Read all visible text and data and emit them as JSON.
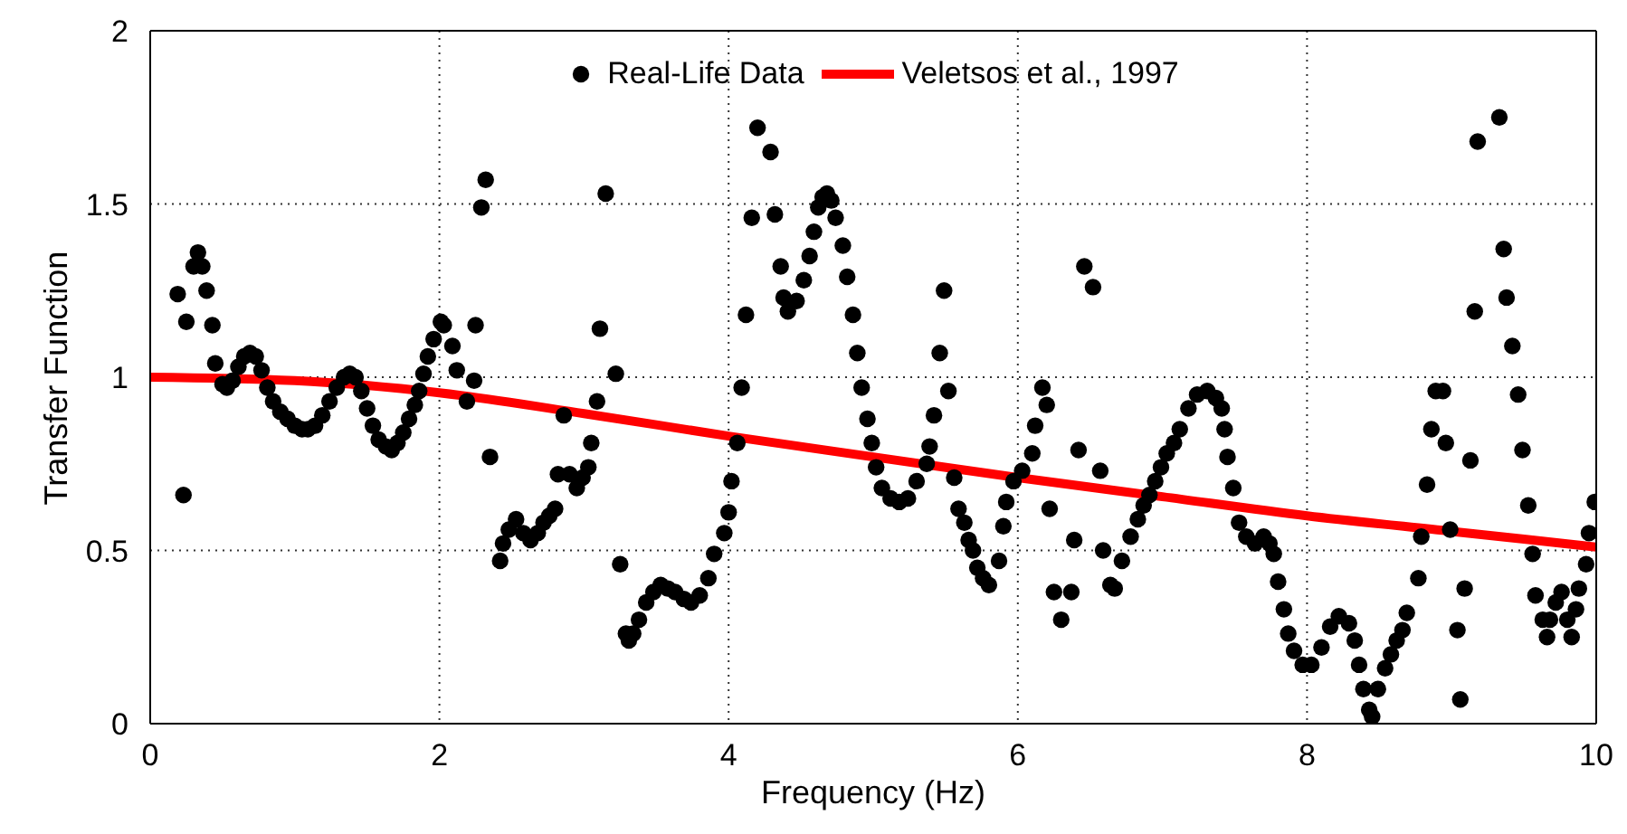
{
  "chart_data": {
    "type": "scatter",
    "xlabel": "Frequency (Hz)",
    "ylabel": "Transfer Function",
    "xlim": [
      0,
      10
    ],
    "xticks": [
      0,
      2,
      4,
      6,
      8,
      10
    ],
    "ylim": [
      0,
      2
    ],
    "yticks": [
      0,
      0.5,
      1,
      1.5,
      2
    ],
    "grid": true,
    "legend": "top",
    "series": [
      {
        "name": "Real-Life Data",
        "color": "#000000",
        "marker": "circle",
        "x": [
          0.19,
          0.23,
          0.25,
          0.3,
          0.33,
          0.36,
          0.39,
          0.43,
          0.45,
          0.5,
          0.53,
          0.57,
          0.61,
          0.65,
          0.69,
          0.73,
          0.77,
          0.81,
          0.85,
          0.9,
          0.95,
          1.0,
          1.05,
          1.09,
          1.14,
          1.19,
          1.24,
          1.29,
          1.34,
          1.38,
          1.42,
          1.46,
          1.5,
          1.54,
          1.58,
          1.63,
          1.67,
          1.71,
          1.75,
          1.79,
          1.83,
          1.86,
          1.89,
          1.92,
          1.96,
          2.01,
          2.03,
          2.09,
          2.12,
          2.19,
          2.24,
          2.25,
          2.29,
          2.32,
          2.35,
          2.42,
          2.44,
          2.48,
          2.53,
          2.58,
          2.63,
          2.68,
          2.72,
          2.76,
          2.8,
          2.82,
          2.86,
          2.9,
          2.95,
          2.99,
          3.03,
          3.05,
          3.09,
          3.11,
          3.15,
          3.22,
          3.25,
          3.29,
          3.31,
          3.34,
          3.38,
          3.43,
          3.48,
          3.53,
          3.58,
          3.63,
          3.69,
          3.74,
          3.8,
          3.86,
          3.9,
          3.97,
          4.0,
          4.02,
          4.06,
          4.09,
          4.12,
          4.16,
          4.2,
          4.29,
          4.32,
          4.36,
          4.38,
          4.41,
          4.47,
          4.52,
          4.56,
          4.59,
          4.62,
          4.65,
          4.68,
          4.71,
          4.74,
          4.79,
          4.82,
          4.86,
          4.89,
          4.92,
          4.96,
          4.99,
          5.02,
          5.06,
          5.12,
          5.18,
          5.24,
          5.3,
          5.37,
          5.39,
          5.42,
          5.46,
          5.49,
          5.52,
          5.56,
          5.59,
          5.63,
          5.66,
          5.69,
          5.72,
          5.76,
          5.8,
          5.87,
          5.9,
          5.92,
          5.97,
          6.03,
          6.1,
          6.12,
          6.17,
          6.2,
          6.22,
          6.25,
          6.3,
          6.37,
          6.39,
          6.42,
          6.46,
          6.52,
          6.57,
          6.59,
          6.64,
          6.67,
          6.72,
          6.78,
          6.83,
          6.87,
          6.91,
          6.95,
          6.99,
          7.03,
          7.08,
          7.12,
          7.18,
          7.24,
          7.31,
          7.37,
          7.41,
          7.43,
          7.45,
          7.49,
          7.53,
          7.58,
          7.64,
          7.7,
          7.74,
          7.77,
          7.8,
          7.84,
          7.87,
          7.91,
          7.97,
          8.03,
          8.1,
          8.16,
          8.22,
          8.29,
          8.33,
          8.36,
          8.39,
          8.43,
          8.45,
          8.49,
          8.54,
          8.58,
          8.62,
          8.66,
          8.69,
          8.77,
          8.79,
          8.83,
          8.86,
          8.89,
          8.94,
          8.96,
          8.99,
          9.04,
          9.06,
          9.09,
          9.13,
          9.16,
          9.18,
          9.33,
          9.36,
          9.38,
          9.42,
          9.46,
          9.49,
          9.53,
          9.56,
          9.58,
          9.63,
          9.66,
          9.68,
          9.72,
          9.76,
          9.8,
          9.83,
          9.86,
          9.88,
          9.93,
          9.95,
          9.99
        ],
        "values": [
          1.24,
          0.66,
          1.16,
          1.32,
          1.36,
          1.32,
          1.25,
          1.15,
          1.04,
          0.98,
          0.97,
          0.99,
          1.03,
          1.06,
          1.07,
          1.06,
          1.02,
          0.97,
          0.93,
          0.9,
          0.88,
          0.86,
          0.85,
          0.85,
          0.86,
          0.89,
          0.93,
          0.97,
          1.0,
          1.01,
          1.0,
          0.96,
          0.91,
          0.86,
          0.82,
          0.8,
          0.79,
          0.81,
          0.84,
          0.88,
          0.92,
          0.96,
          1.01,
          1.06,
          1.11,
          1.16,
          1.15,
          1.09,
          1.02,
          0.93,
          0.99,
          1.15,
          1.49,
          1.57,
          0.77,
          0.47,
          0.52,
          0.56,
          0.59,
          0.55,
          0.53,
          0.55,
          0.58,
          0.6,
          0.62,
          0.72,
          0.89,
          0.72,
          0.68,
          0.71,
          0.74,
          0.81,
          0.93,
          1.14,
          1.53,
          1.01,
          0.46,
          0.26,
          0.24,
          0.26,
          0.3,
          0.35,
          0.38,
          0.4,
          0.39,
          0.38,
          0.36,
          0.35,
          0.37,
          0.42,
          0.49,
          0.55,
          0.61,
          0.7,
          0.81,
          0.97,
          1.18,
          1.46,
          1.72,
          1.65,
          1.47,
          1.32,
          1.23,
          1.19,
          1.22,
          1.28,
          1.35,
          1.42,
          1.49,
          1.52,
          1.53,
          1.51,
          1.46,
          1.38,
          1.29,
          1.18,
          1.07,
          0.97,
          0.88,
          0.81,
          0.74,
          0.68,
          0.65,
          0.64,
          0.65,
          0.7,
          0.75,
          0.8,
          0.89,
          1.07,
          1.25,
          0.96,
          0.71,
          0.62,
          0.58,
          0.53,
          0.5,
          0.45,
          0.42,
          0.4,
          0.47,
          0.57,
          0.64,
          0.7,
          0.73,
          0.78,
          0.86,
          0.97,
          0.92,
          0.62,
          0.38,
          0.3,
          0.38,
          0.53,
          0.79,
          1.32,
          1.26,
          0.73,
          0.5,
          0.4,
          0.39,
          0.47,
          0.54,
          0.59,
          0.63,
          0.66,
          0.7,
          0.74,
          0.78,
          0.81,
          0.85,
          0.91,
          0.95,
          0.96,
          0.94,
          0.91,
          0.85,
          0.77,
          0.68,
          0.58,
          0.54,
          0.52,
          0.54,
          0.52,
          0.49,
          0.41,
          0.33,
          0.26,
          0.21,
          0.17,
          0.17,
          0.22,
          0.28,
          0.31,
          0.29,
          0.24,
          0.17,
          0.1,
          0.04,
          0.02,
          0.1,
          0.16,
          0.2,
          0.24,
          0.27,
          0.32,
          0.42,
          0.54,
          0.69,
          0.85,
          0.96,
          0.96,
          0.81,
          0.56,
          0.27,
          0.07,
          0.39,
          0.76,
          1.19,
          1.68,
          1.75,
          1.37,
          1.23,
          1.09,
          0.95,
          0.79,
          0.63,
          0.49,
          0.37,
          0.3,
          0.25,
          0.3,
          0.35,
          0.38,
          0.3,
          0.25,
          0.33,
          0.39,
          0.46,
          0.55,
          0.64
        ]
      },
      {
        "name": "Veletsos et al., 1997",
        "type": "line",
        "color": "#ff0000",
        "marker": "none",
        "line_style": "solid",
        "x": [
          0,
          1,
          2,
          3,
          4,
          5,
          6,
          7,
          8,
          9,
          10
        ],
        "values": [
          1.0,
          0.99,
          0.955,
          0.895,
          0.83,
          0.77,
          0.71,
          0.655,
          0.6,
          0.555,
          0.51
        ]
      }
    ]
  }
}
